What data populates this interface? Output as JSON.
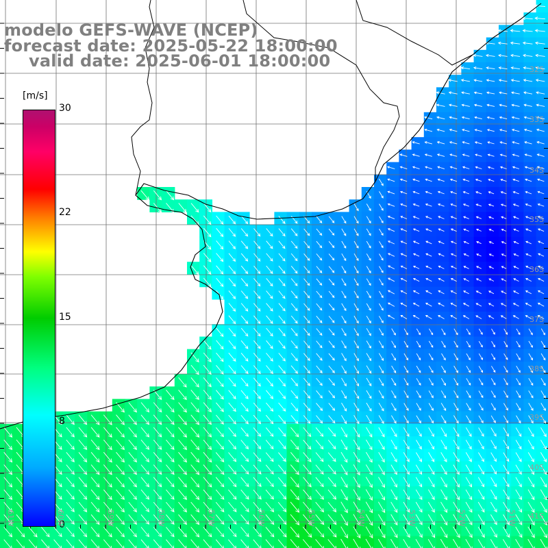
{
  "title": {
    "line1": "modelo GEFS-WAVE (NCEP)",
    "line2": "forecast date: 2025-05-22 18:00:00",
    "line3": "valid date: 2025-06-01 18:00:00"
  },
  "colorbar": {
    "unit": "[m/s]",
    "range": [
      0,
      30
    ],
    "ticks": [
      "30",
      "22",
      "15",
      "8",
      "0"
    ],
    "colors": [
      "#0000ff",
      "#00aaff",
      "#00ffff",
      "#00cc00",
      "#ffff00",
      "#ff0000",
      "#b01070"
    ]
  },
  "lat_labels": [
    "32S",
    "33S",
    "34S",
    "35S",
    "36S",
    "37S",
    "38S",
    "39S",
    "40S",
    "41S"
  ],
  "lon_labels": [
    "61W",
    "60W",
    "59W",
    "58W",
    "57W",
    "56W",
    "55W",
    "54W",
    "53W",
    "52W",
    "51W"
  ]
}
